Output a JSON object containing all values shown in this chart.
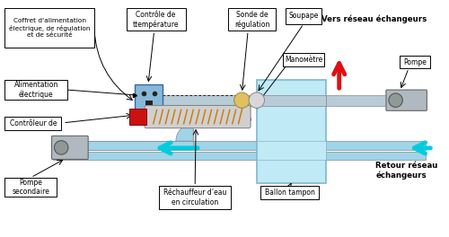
{
  "bg_color": "#ffffff",
  "pipe_color_main": "#b8ccd8",
  "pipe_color_secondary": "#a0d4e8",
  "tank_color": "#c0eaf5",
  "tank_border": "#80b8cc",
  "box_color": "#88b8d8",
  "red_arrow_color": "#dd1111",
  "cyan_arrow_color": "#00ccdd",
  "red_element_color": "#cc1111",
  "heater_color": "#c8c8c8",
  "heater_winding": "#cc7700",
  "labels": {
    "coffret": "Coffret d'alimentation\nélectrique, de régulation\net de sécurité",
    "alimentation": "Alimentation\nélectrique",
    "controleur": "Contrôleur de",
    "pompe_sec": "Pompe\nsecondaire",
    "controle_temp": "Contrôle de\nttempérature",
    "rechauffeur": "Réchauffeur d’eau\nen circulation",
    "sonde": "Sonde de\nrégulation",
    "soupape": "Soupape",
    "manometre": "Manoмètre",
    "ballon": "Ballon tampon",
    "vers_reseau": "Vers réseau échangeurs",
    "retour_reseau": "Retour réseau\néchangeurs",
    "pompe": "Pompe"
  }
}
